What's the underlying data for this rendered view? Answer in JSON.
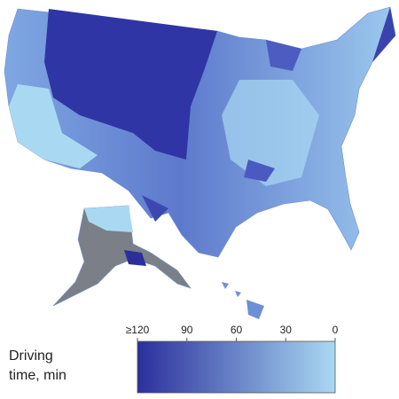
{
  "legend": {
    "title": [
      "Driving",
      "time, min"
    ],
    "lim": [
      120,
      0
    ],
    "ticks": [
      {
        "value": 120,
        "label": "≥120"
      },
      90,
      60,
      30,
      0
    ],
    "colors": [
      "#2b2f9c",
      "#a9d9f2"
    ]
  }
}
